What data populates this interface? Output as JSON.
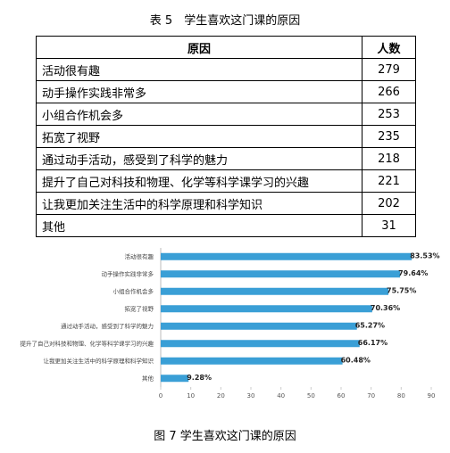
{
  "table_caption": "表 5　学生喜欢这门课的原因",
  "table": {
    "header": [
      "原因",
      "人数"
    ],
    "rows": [
      [
        "活动很有趣",
        "279"
      ],
      [
        "动手操作实践非常多",
        "266"
      ],
      [
        "小组合作机会多",
        "253"
      ],
      [
        "拓宽了视野",
        "235"
      ],
      [
        "通过动手活动，感受到了科学的魅力",
        "218"
      ],
      [
        "提升了自己对科技和物理、化学等科学课学习的兴趣",
        "221"
      ],
      [
        "让我更加关注生活中的科学原理和科学知识",
        "202"
      ],
      [
        "其他",
        "31"
      ]
    ]
  },
  "chart_data": {
    "type": "bar",
    "orientation": "horizontal",
    "categories": [
      "活动很有趣",
      "动手操作实践非常多",
      "小组合作机会多",
      "拓宽了视野",
      "通过动手活动，感受到了科学的魅力",
      "提升了自己对科技和物理、化学等科学课学习的兴趣",
      "让我更加关注生活中的科学原理和科学知识",
      "其他"
    ],
    "values": [
      83.53,
      79.64,
      75.75,
      70.36,
      65.27,
      66.17,
      60.48,
      9.28
    ],
    "value_labels": [
      "83.53%",
      "79.64%",
      "75.75%",
      "70.36%",
      "65.27%",
      "66.17%",
      "60.48%",
      "9.28%"
    ],
    "color": "#3a9fd6",
    "xlim": [
      0,
      90
    ],
    "xticks": [
      0,
      10,
      20,
      30,
      40,
      50,
      60,
      70,
      80,
      90
    ]
  },
  "figure_caption": "图 7 学生喜欢这门课的原因"
}
